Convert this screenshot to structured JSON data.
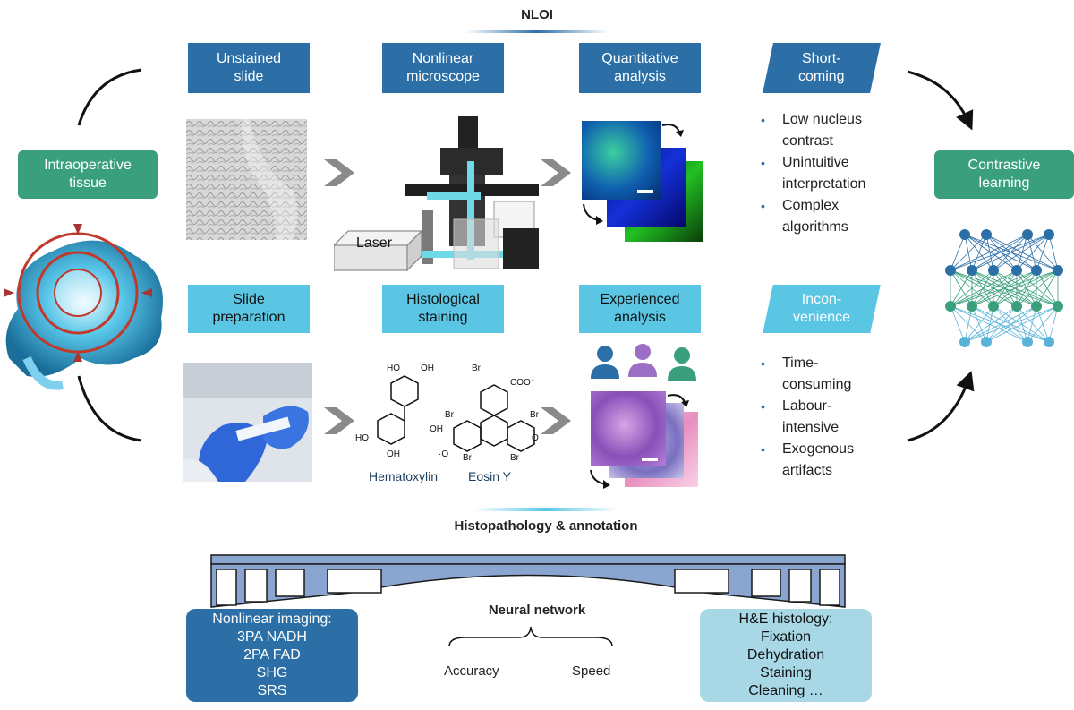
{
  "top_title": "NLOI",
  "bottom_title": "Histopathology & annotation",
  "top_row": [
    {
      "label": "Unstained\nslide"
    },
    {
      "label": "Nonlinear\nmicroscope"
    },
    {
      "label": "Quantitative\nanalysis"
    },
    {
      "label": "Short-\ncoming"
    }
  ],
  "bottom_row": [
    {
      "label": "Slide\npreparation"
    },
    {
      "label": "Histological\nstaining"
    },
    {
      "label": "Experienced\nanalysis"
    },
    {
      "label": "Incon-\nvenience"
    }
  ],
  "left_box": "Intraoperative\ntissue",
  "right_box": "Contrastive\nlearning",
  "laser_label": "Laser",
  "stain_labels": {
    "hematoxylin": "Hematoxylin",
    "eosin": "Eosin Y"
  },
  "shortcomings": [
    "Low nucleus\ncontrast",
    "Unintuitive\ninterpretation",
    "Complex\nalgorithms"
  ],
  "inconveniences": [
    "Time-\nconsuming",
    "Labour-\nintensive",
    "Exogenous\nartifacts"
  ],
  "bridge": {
    "center_title": "Neural network",
    "accuracy": "Accuracy",
    "speed": "Speed",
    "left_box": [
      "Nonlinear imaging:",
      "3PA NADH",
      "2PA FAD",
      "SHG",
      "SRS"
    ],
    "right_box": [
      "H&E histology:",
      "Fixation",
      "Dehydration",
      "Staining",
      "Cleaning …"
    ]
  },
  "colors": {
    "dark_blue": "#2c6fa6",
    "light_blue": "#5bc6e4",
    "green": "#3a9f7c",
    "bridge": "#8aa6d0"
  }
}
